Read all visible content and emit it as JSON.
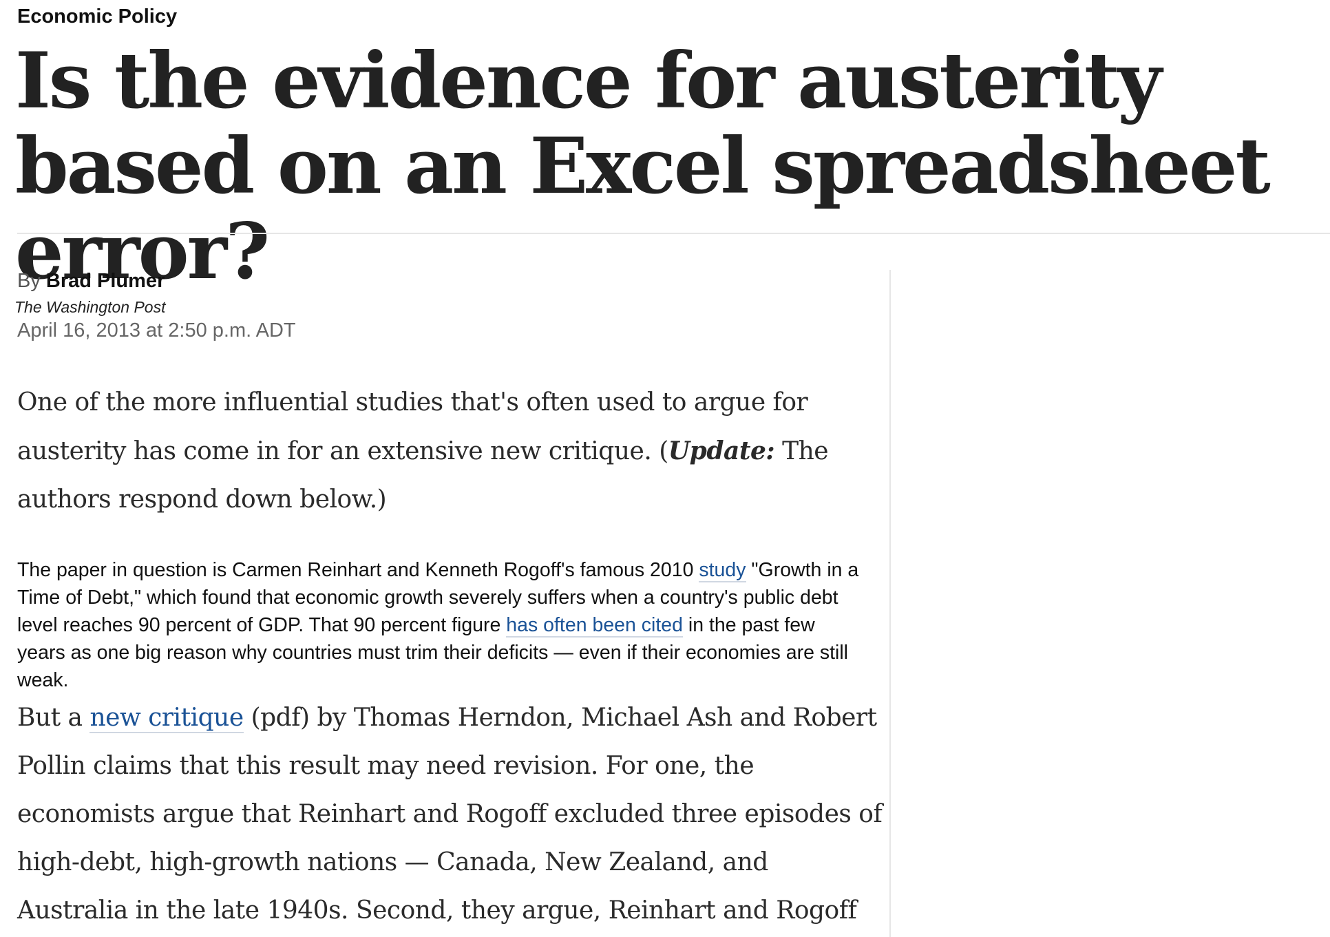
{
  "article": {
    "section": "Economic Policy",
    "headline": "Is the evidence for austerity based on an Excel spreadsheet error?",
    "byline": {
      "prefix": "By",
      "author": "Brad Plumer",
      "publication": "The Washington Post",
      "date": "April 16, 2013 at 2:50 p.m. ADT"
    },
    "paragraph1": {
      "text": "One of the more influential studies that's often used to argue for austerity has come in for an extensive new critique. (",
      "update_label": "Update:",
      "update_text": " The authors respond down below.)"
    },
    "paragraph2": {
      "text_a": "The paper in question is Carmen Reinhart and Kenneth Rogoff's famous 2010 ",
      "link_study": "study",
      "text_b": " \"Growth in a Time of Debt,\" which found that economic growth severely suffers when a country's public debt level reaches 90 percent of GDP. That 90 percent figure ",
      "link_cited": "has often been cited",
      "text_c": " in the past few years as one big reason why countries must trim their deficits — even if their economies are still weak."
    },
    "paragraph3": {
      "text_a": "But a ",
      "link_critique": "new critique",
      "text_b": " (pdf) by Thomas Herndon, Michael Ash and Robert Pollin claims that this result may need revision. For one, the economists argue that Reinhart and Rogoff excluded three episodes of high-debt, high-growth nations — Canada, New Zealand, and Australia in the late 1940s. Second, they argue, Reinhart and Rogoff"
    }
  }
}
